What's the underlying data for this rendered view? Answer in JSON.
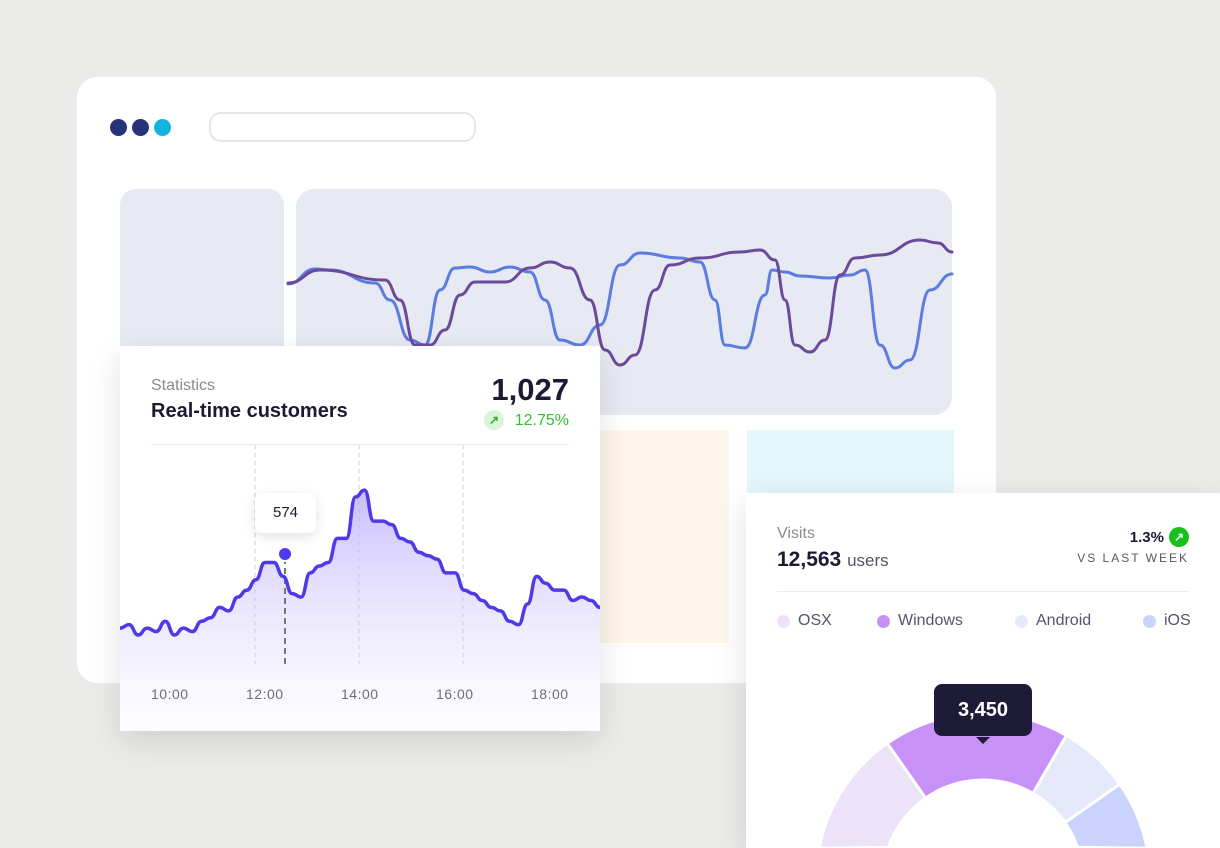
{
  "window": {
    "dot_colors": [
      "#26337a",
      "#26337a",
      "#13b4de"
    ]
  },
  "background_chart": {
    "series": [
      {
        "name": "blue",
        "color": "#5b7ddf"
      },
      {
        "name": "purple",
        "color": "#6c4a9b"
      }
    ]
  },
  "stats_card": {
    "label": "Statistics",
    "title": "Real-time customers",
    "value": "1,027",
    "change": "12.75%",
    "change_icon": "arrow-up-right-icon",
    "chart_data": {
      "type": "area",
      "x_ticks": [
        "10:00",
        "12:00",
        "14:00",
        "16:00",
        "18:00"
      ],
      "tooltip": {
        "x": "12:20",
        "value": "574"
      },
      "color": "#4f3ae8",
      "y_relative": [
        0.22,
        0.23,
        0.2,
        0.22,
        0.21,
        0.24,
        0.2,
        0.22,
        0.21,
        0.24,
        0.25,
        0.28,
        0.27,
        0.31,
        0.33,
        0.36,
        0.41,
        0.41,
        0.37,
        0.32,
        0.31,
        0.38,
        0.4,
        0.41,
        0.48,
        0.48,
        0.6,
        0.62,
        0.53,
        0.53,
        0.52,
        0.48,
        0.47,
        0.44,
        0.43,
        0.42,
        0.38,
        0.38,
        0.33,
        0.32,
        0.3,
        0.28,
        0.27,
        0.24,
        0.23,
        0.29,
        0.37,
        0.35,
        0.33,
        0.33,
        0.3,
        0.31,
        0.3,
        0.28
      ]
    }
  },
  "visits_card": {
    "label": "Visits",
    "value": "12,563",
    "unit": "users",
    "change": "1.3%",
    "change_icon": "arrow-up-right-icon",
    "compare": "VS LAST WEEK",
    "legend": [
      {
        "name": "OSX",
        "color": "#ece3f8"
      },
      {
        "name": "Windows",
        "color": "#c891f8"
      },
      {
        "name": "Android",
        "color": "#e5e9fb"
      },
      {
        "name": "iOS",
        "color": "#c9d3fb"
      }
    ],
    "chart_data": {
      "type": "pie",
      "segments": [
        "OSX",
        "Windows",
        "Android",
        "iOS"
      ],
      "tooltip": {
        "segment": "Windows",
        "value": "3,450"
      }
    }
  }
}
